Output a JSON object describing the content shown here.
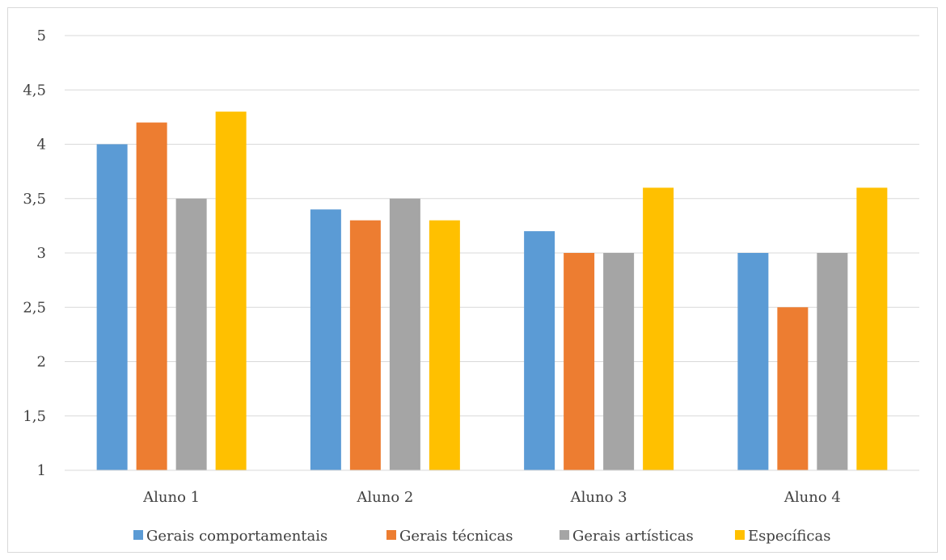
{
  "chart_data": {
    "type": "bar",
    "categories": [
      "Aluno 1",
      "Aluno 2",
      "Aluno 3",
      "Aluno 4"
    ],
    "series": [
      {
        "name": "Gerais comportamentais",
        "color": "#5b9bd5",
        "values": [
          4.0,
          3.4,
          3.2,
          3.0
        ]
      },
      {
        "name": "Gerais técnicas",
        "color": "#ed7d31",
        "values": [
          4.2,
          3.3,
          3.0,
          2.5
        ]
      },
      {
        "name": "Gerais artísticas",
        "color": "#a5a5a5",
        "values": [
          3.5,
          3.5,
          3.0,
          3.0
        ]
      },
      {
        "name": "Específicas",
        "color": "#ffc000",
        "values": [
          4.3,
          3.3,
          3.6,
          3.6
        ]
      }
    ],
    "ylim": [
      1,
      5
    ],
    "yticks": [
      "1",
      "1,5",
      "2",
      "2,5",
      "3",
      "3,5",
      "4",
      "4,5",
      "5"
    ],
    "grid": true,
    "legend_position": "bottom"
  }
}
